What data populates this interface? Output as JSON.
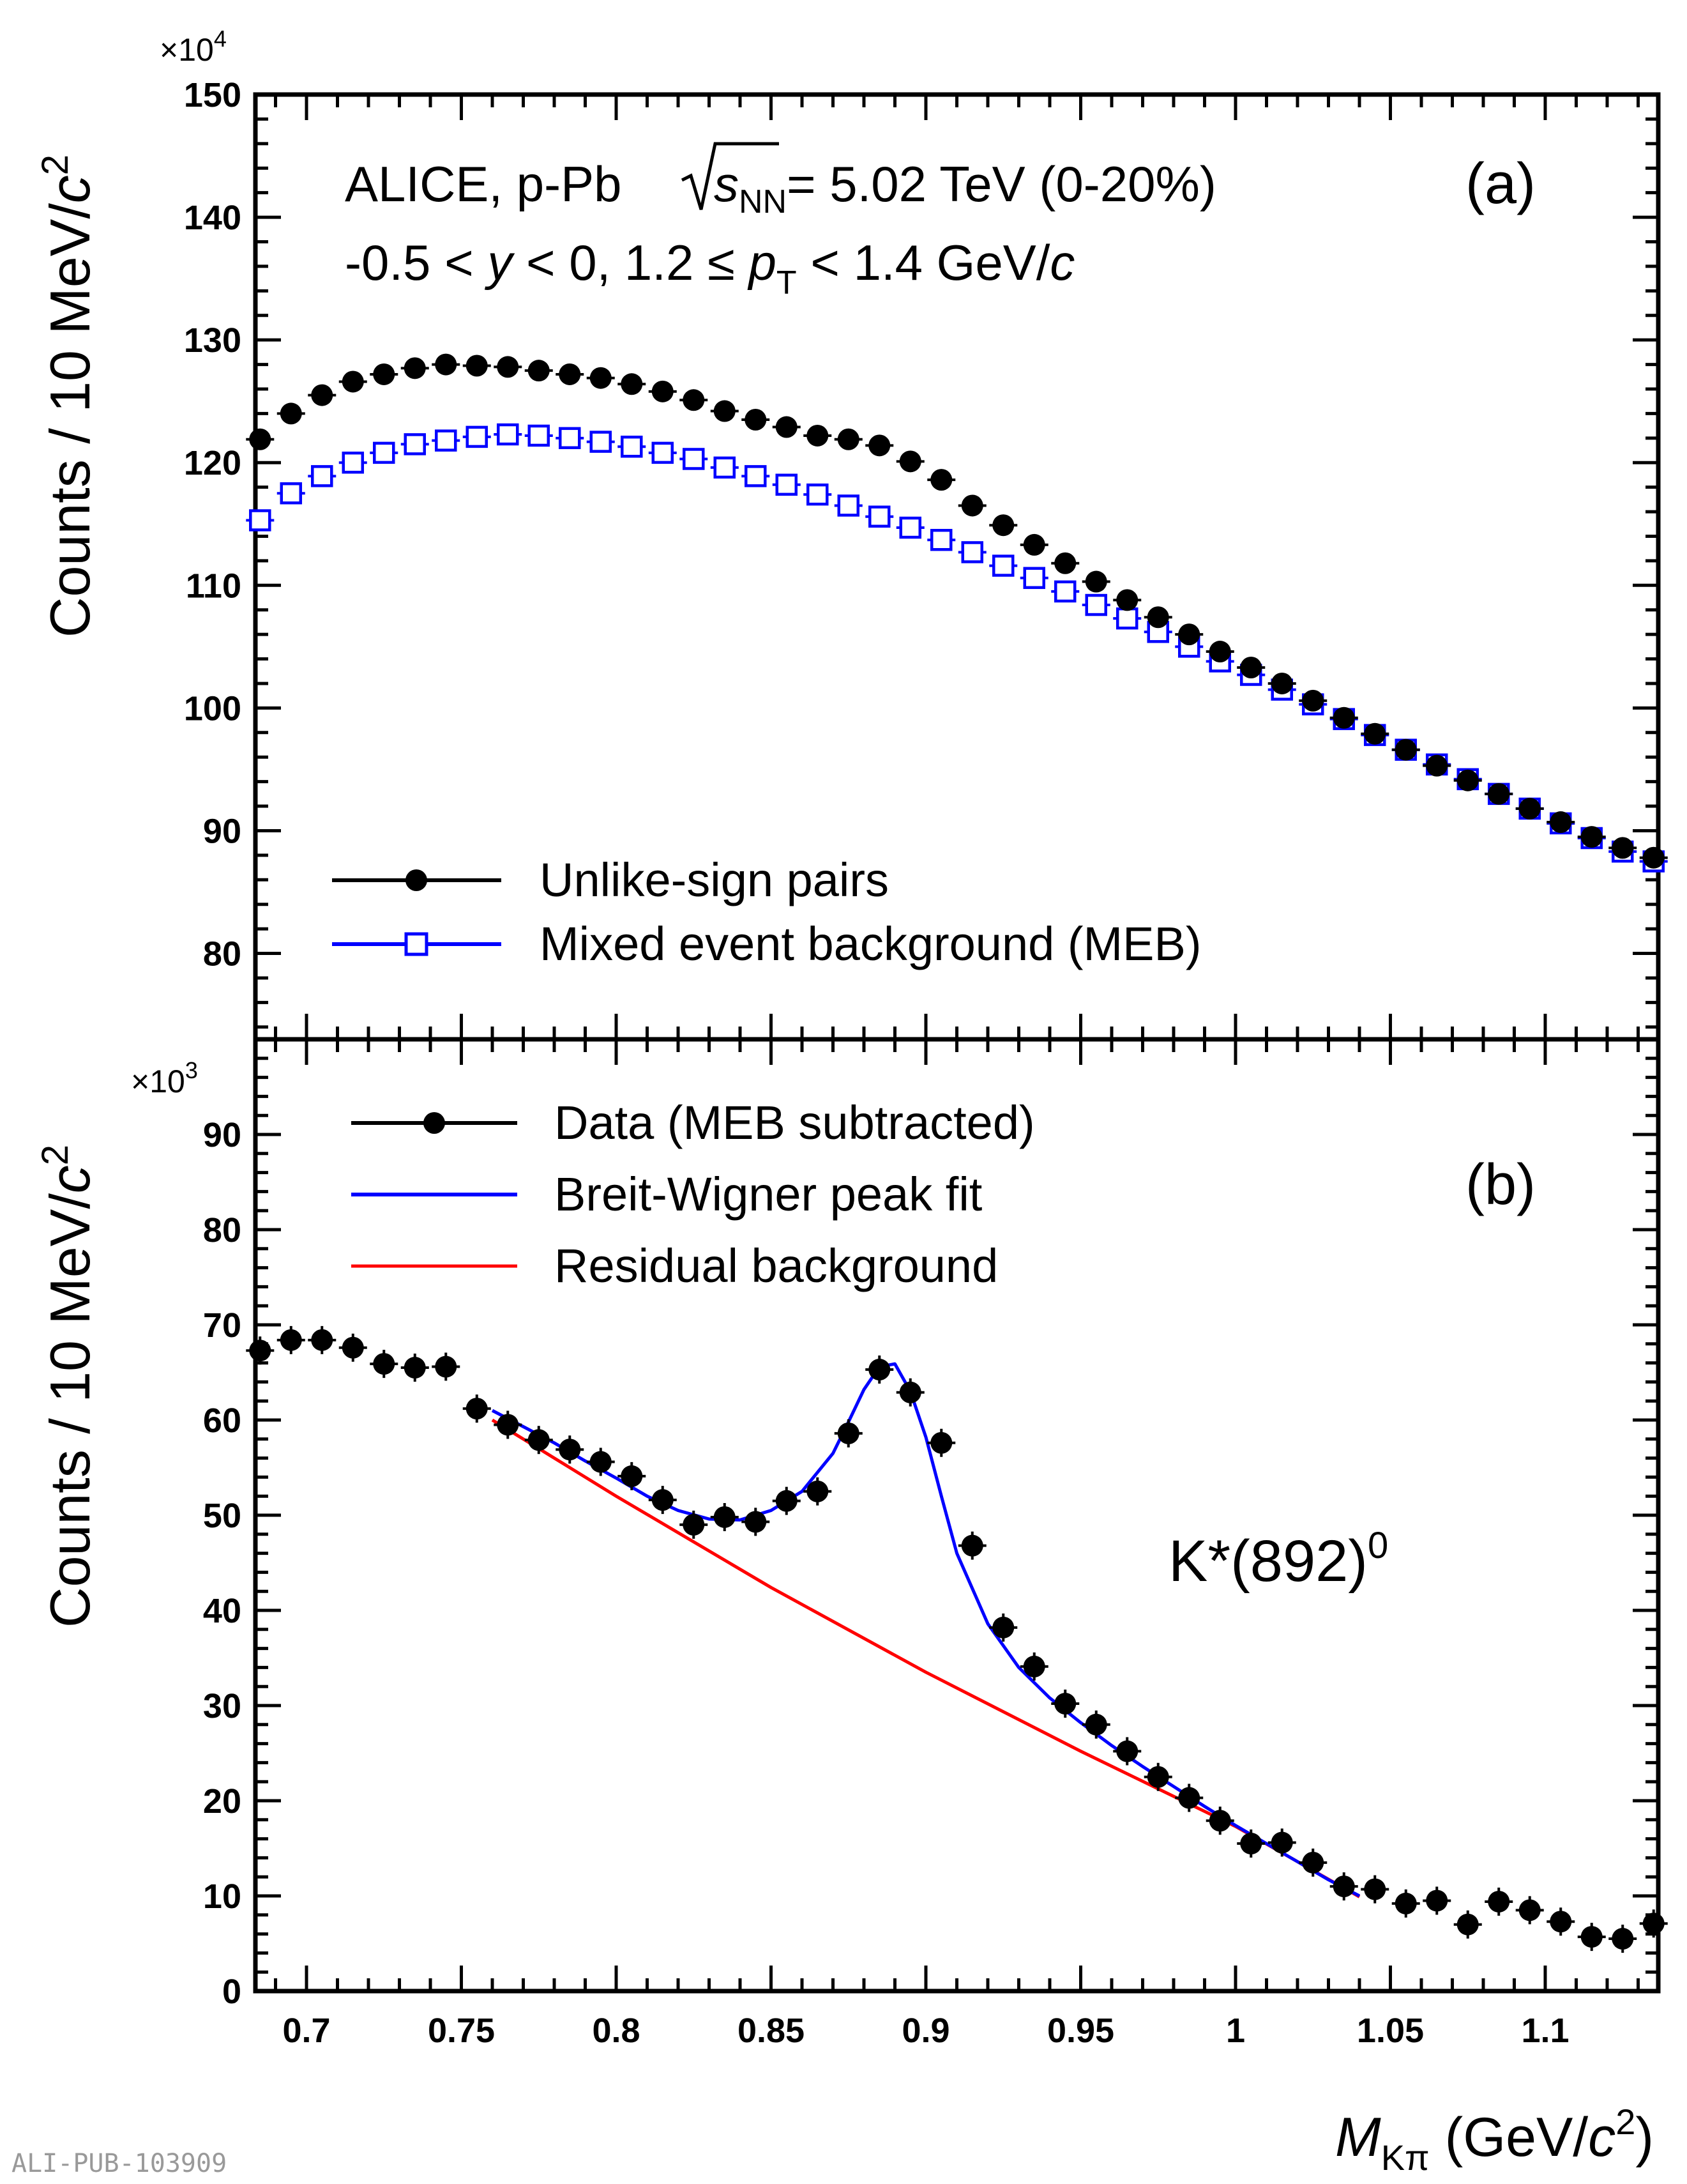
{
  "chart_data": [
    {
      "panel": "a",
      "type": "scatter",
      "panel_label": "(a)",
      "annotation": {
        "line1_prefix": "ALICE, p-Pb ",
        "sqrt_s_symbol": "s",
        "sqrt_s_sub": "NN",
        "line1_suffix": " = 5.02 TeV (0-20%)",
        "line2": {
          "part1": "-0.5 < ",
          "y_symbol": "y",
          "part2": " < 0, 1.2 ≤ ",
          "pt_symbol": "p",
          "pt_sub": "T",
          "part3": " < 1.4 GeV/",
          "c_symbol": "c"
        }
      },
      "ylabel": "Counts / 10 MeV/",
      "ylabel_c": "c",
      "ylabel_exp": "2",
      "yscale_label": "×10",
      "yscale_exp": "4",
      "ylim": [
        73,
        150
      ],
      "yticks": [
        80,
        90,
        100,
        110,
        120,
        130,
        140,
        150
      ],
      "xlim": [
        0.6835,
        1.1365
      ],
      "series": [
        {
          "name": "Unlike-sign pairs",
          "color": "#000000",
          "marker": "filled-circle",
          "x": [
            0.685,
            0.695,
            0.705,
            0.715,
            0.725,
            0.735,
            0.745,
            0.755,
            0.765,
            0.775,
            0.785,
            0.795,
            0.805,
            0.815,
            0.825,
            0.835,
            0.845,
            0.855,
            0.865,
            0.875,
            0.885,
            0.895,
            0.905,
            0.915,
            0.925,
            0.935,
            0.945,
            0.955,
            0.965,
            0.975,
            0.985,
            0.995,
            1.005,
            1.015,
            1.025,
            1.035,
            1.045,
            1.055,
            1.065,
            1.075,
            1.085,
            1.095,
            1.105,
            1.115,
            1.125,
            1.135
          ],
          "y": [
            121.9,
            124.0,
            125.5,
            126.6,
            127.2,
            127.7,
            128.0,
            127.9,
            127.8,
            127.5,
            127.2,
            126.9,
            126.4,
            125.8,
            125.1,
            124.2,
            123.5,
            122.9,
            122.2,
            121.9,
            121.4,
            120.1,
            118.6,
            116.5,
            114.9,
            113.3,
            111.8,
            110.3,
            108.8,
            107.4,
            106.0,
            104.6,
            103.3,
            102.0,
            100.6,
            99.2,
            97.9,
            96.6,
            95.3,
            94.1,
            93.0,
            91.8,
            90.7,
            89.5,
            88.6,
            87.8
          ]
        },
        {
          "name": "Mixed event background (MEB)",
          "color": "#0000ff",
          "marker": "open-square",
          "x": [
            0.685,
            0.695,
            0.705,
            0.715,
            0.725,
            0.735,
            0.745,
            0.755,
            0.765,
            0.775,
            0.785,
            0.795,
            0.805,
            0.815,
            0.825,
            0.835,
            0.845,
            0.855,
            0.865,
            0.875,
            0.885,
            0.895,
            0.905,
            0.915,
            0.925,
            0.935,
            0.945,
            0.955,
            0.965,
            0.975,
            0.985,
            0.995,
            1.005,
            1.015,
            1.025,
            1.035,
            1.045,
            1.055,
            1.065,
            1.075,
            1.085,
            1.095,
            1.105,
            1.115,
            1.125,
            1.135
          ],
          "y": [
            115.3,
            117.5,
            118.9,
            120.0,
            120.8,
            121.5,
            121.8,
            122.1,
            122.3,
            122.2,
            122.0,
            121.7,
            121.3,
            120.8,
            120.3,
            119.6,
            118.9,
            118.2,
            117.4,
            116.5,
            115.6,
            114.7,
            113.7,
            112.7,
            111.6,
            110.6,
            109.5,
            108.4,
            107.3,
            106.2,
            105.0,
            103.8,
            102.7,
            101.5,
            100.3,
            99.1,
            97.8,
            96.6,
            95.4,
            94.2,
            93.0,
            91.8,
            90.6,
            89.4,
            88.3,
            87.5
          ]
        }
      ]
    },
    {
      "panel": "b",
      "type": "scatter",
      "panel_label": "(b)",
      "particle_label": "K*(892)",
      "particle_sup": "0",
      "ylabel": "Counts / 10 MeV/",
      "ylabel_c": "c",
      "ylabel_exp": "2",
      "yscale_label": "×10",
      "yscale_exp": "3",
      "ylim": [
        0,
        100
      ],
      "yticks": [
        0,
        10,
        20,
        30,
        40,
        50,
        60,
        70,
        80,
        90
      ],
      "xlim": [
        0.6835,
        1.1365
      ],
      "xticks": [
        0.7,
        0.75,
        0.8,
        0.85,
        0.9,
        0.95,
        1,
        1.05,
        1.1
      ],
      "xtick_labels": [
        "0.7",
        "0.75",
        "0.8",
        "0.85",
        "0.9",
        "0.95",
        "1",
        "1.05",
        "1.1"
      ],
      "xlabel": {
        "symbol": "M",
        "sub": "Kπ",
        "unit_prefix": " (GeV/",
        "c_symbol": "c",
        "c_exp": "2",
        "unit_suffix": ")"
      },
      "series": [
        {
          "name": "Data (MEB subtracted)",
          "color": "#000000",
          "marker": "filled-circle",
          "x": [
            0.685,
            0.695,
            0.705,
            0.715,
            0.725,
            0.735,
            0.745,
            0.755,
            0.765,
            0.775,
            0.785,
            0.795,
            0.805,
            0.815,
            0.825,
            0.835,
            0.845,
            0.855,
            0.865,
            0.875,
            0.885,
            0.895,
            0.905,
            0.915,
            0.925,
            0.935,
            0.945,
            0.955,
            0.965,
            0.975,
            0.985,
            0.995,
            1.005,
            1.015,
            1.025,
            1.035,
            1.045,
            1.055,
            1.065,
            1.075,
            1.085,
            1.095,
            1.105,
            1.115,
            1.125,
            1.135
          ],
          "y": [
            67.3,
            68.4,
            68.4,
            67.6,
            65.9,
            65.5,
            65.6,
            61.2,
            59.5,
            57.9,
            56.9,
            55.6,
            54.1,
            51.6,
            49.0,
            49.8,
            49.3,
            51.5,
            52.5,
            58.6,
            65.3,
            62.9,
            57.6,
            46.8,
            38.2,
            34.1,
            30.2,
            28.0,
            25.2,
            22.5,
            20.3,
            17.9,
            15.5,
            15.6,
            13.5,
            11.0,
            10.7,
            9.2,
            9.5,
            7.0,
            9.4,
            8.5,
            7.3,
            5.7,
            5.5,
            7.1
          ]
        },
        {
          "name": "Breit-Wigner peak fit",
          "color": "#0000ff",
          "marker": "line",
          "x": [
            0.76,
            0.77,
            0.78,
            0.79,
            0.8,
            0.81,
            0.82,
            0.83,
            0.84,
            0.85,
            0.86,
            0.87,
            0.875,
            0.88,
            0.885,
            0.89,
            0.895,
            0.9,
            0.905,
            0.91,
            0.92,
            0.93,
            0.94,
            0.95,
            0.96,
            0.97,
            0.98,
            0.99,
            1.0,
            1.01,
            1.02,
            1.03,
            1.04
          ],
          "y": [
            61.0,
            59.3,
            57.6,
            55.7,
            53.9,
            52.0,
            50.5,
            49.6,
            49.5,
            50.5,
            52.5,
            56.5,
            59.8,
            63.2,
            65.6,
            65.9,
            63.0,
            58.2,
            52.0,
            46.0,
            38.6,
            34.0,
            30.8,
            28.2,
            25.8,
            23.6,
            21.5,
            19.4,
            17.4,
            15.5,
            13.6,
            11.7,
            10.0
          ]
        },
        {
          "name": "Residual background",
          "color": "#ff0000",
          "marker": "line",
          "x": [
            0.76,
            0.8,
            0.85,
            0.9,
            0.95,
            1.0,
            1.04
          ],
          "y": [
            60.0,
            52.0,
            42.4,
            33.5,
            25.2,
            17.3,
            9.9
          ]
        }
      ]
    }
  ],
  "footer_id": "ALI-PUB-103909"
}
